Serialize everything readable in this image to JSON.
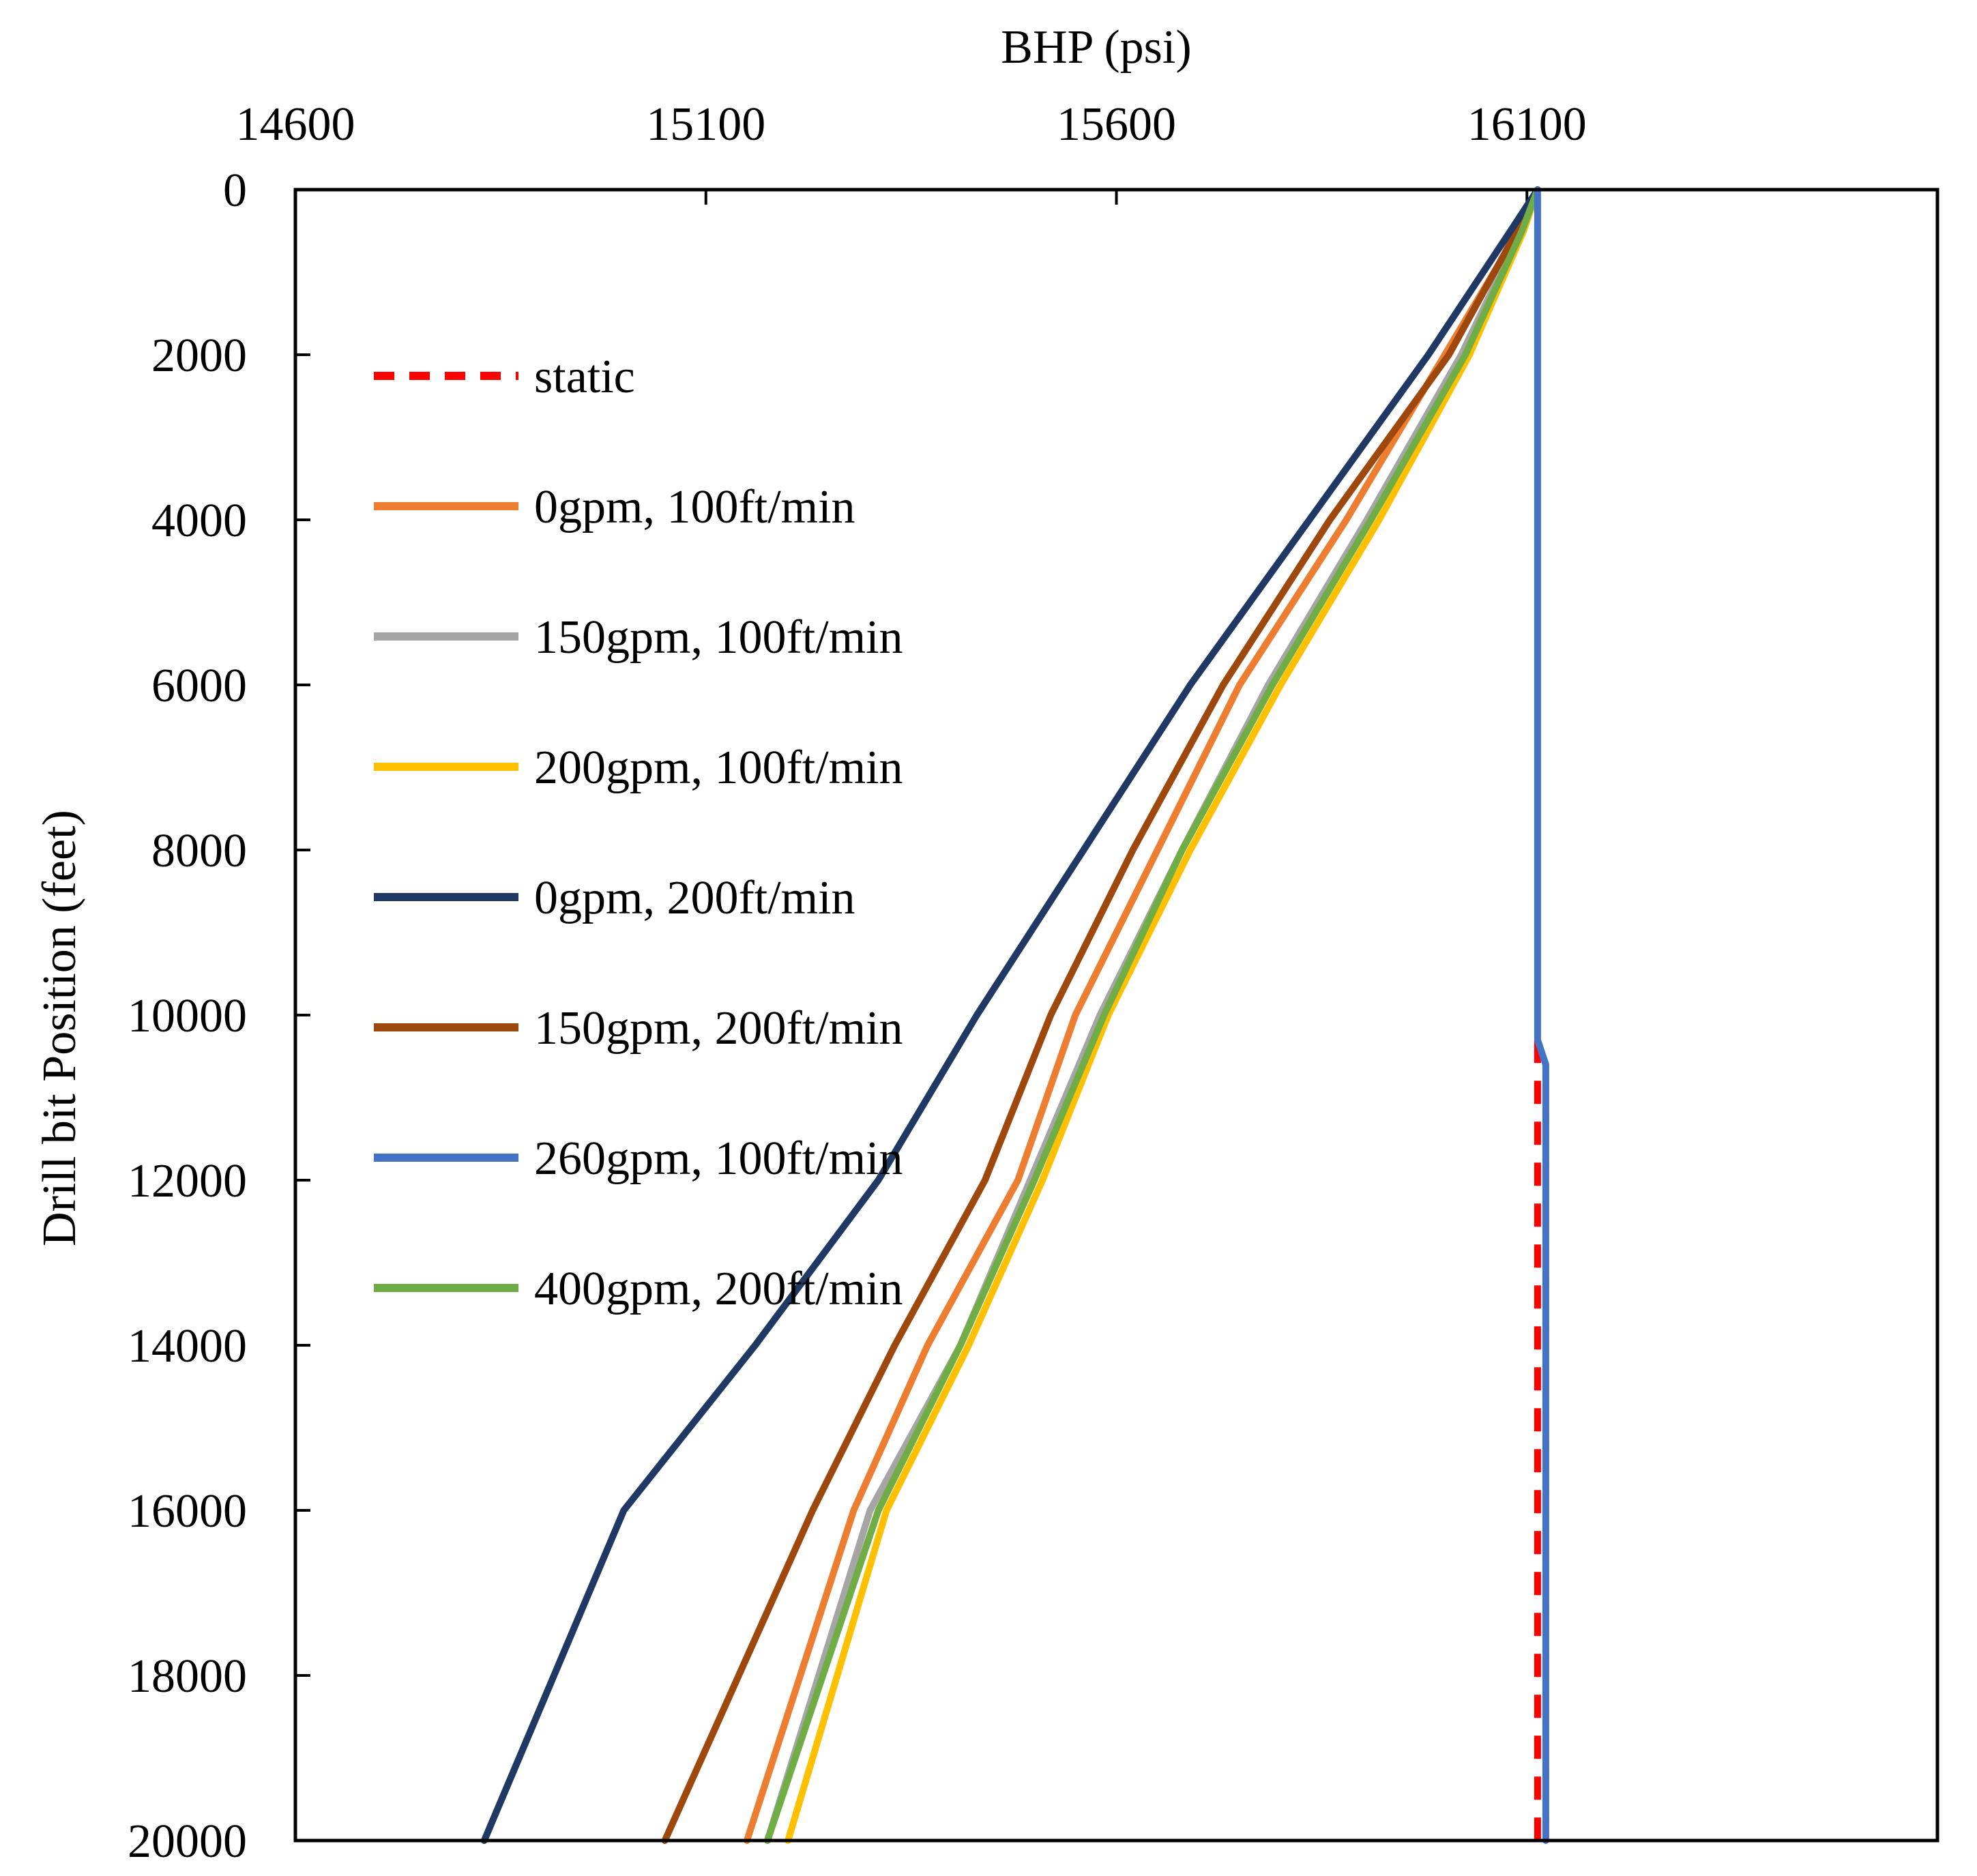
{
  "chart_data": {
    "type": "line",
    "title": "",
    "xlabel": "BHP (psi)",
    "ylabel": "Drill bit Position (feet)",
    "x_axis_position": "top",
    "y_axis_inverted": true,
    "xlim": [
      14600,
      16600
    ],
    "ylim": [
      0,
      20000
    ],
    "xticks": [
      14600,
      15100,
      15600,
      16100
    ],
    "xtick_labels": [
      "14600",
      "15100",
      "15600",
      "16100"
    ],
    "yticks": [
      0,
      2000,
      4000,
      6000,
      8000,
      10000,
      12000,
      14000,
      16000,
      18000,
      20000
    ],
    "ytick_labels": [
      "0",
      "2000",
      "4000",
      "6000",
      "8000",
      "10000",
      "12000",
      "14000",
      "16000",
      "18000",
      "20000"
    ],
    "grid": false,
    "legend_position": "upper-left inside plot",
    "series": [
      {
        "name": "static",
        "color": "#FF0000",
        "dashed": true,
        "x": [
          16113,
          16113
        ],
        "y": [
          10300,
          20000
        ]
      },
      {
        "name": "0gpm, 100ft/min",
        "color": "#ED7D31",
        "dashed": false,
        "x": [
          16113,
          16090,
          16000,
          15880,
          15750,
          15650,
          15550,
          15480,
          15370,
          15280,
          15150
        ],
        "y": [
          0,
          500,
          2000,
          4000,
          6000,
          8000,
          10000,
          12000,
          14000,
          16000,
          20000
        ]
      },
      {
        "name": "150gpm, 100ft/min",
        "color": "#A5A5A5",
        "dashed": false,
        "x": [
          16113,
          16093,
          16020,
          15905,
          15785,
          15680,
          15580,
          15495,
          15410,
          15300,
          15175
        ],
        "y": [
          0,
          500,
          2000,
          4000,
          6000,
          8000,
          10000,
          12000,
          14000,
          16000,
          20000
        ]
      },
      {
        "name": "200gpm, 100ft/min",
        "color": "#FFC000",
        "dashed": false,
        "x": [
          16113,
          16096,
          16030,
          15920,
          15800,
          15690,
          15590,
          15510,
          15420,
          15320,
          15200
        ],
        "y": [
          0,
          500,
          2000,
          4000,
          6000,
          8000,
          10000,
          12000,
          14000,
          16000,
          20000
        ]
      },
      {
        "name": "0gpm, 200ft/min",
        "color": "#203864",
        "dashed": false,
        "x": [
          16113,
          16080,
          15980,
          15835,
          15690,
          15560,
          15430,
          15310,
          15160,
          15000,
          14830
        ],
        "y": [
          0,
          500,
          2000,
          4000,
          6000,
          8000,
          10000,
          12000,
          14000,
          16000,
          20000
        ]
      },
      {
        "name": "150gpm, 200ft/min",
        "color": "#9E480E",
        "dashed": false,
        "x": [
          16113,
          16088,
          16005,
          15860,
          15730,
          15620,
          15520,
          15440,
          15330,
          15230,
          15050
        ],
        "y": [
          0,
          500,
          2000,
          4000,
          6000,
          8000,
          10000,
          12000,
          14000,
          16000,
          20000
        ]
      },
      {
        "name": "260gpm, 100ft/min",
        "color": "#4472C4",
        "dashed": false,
        "x": [
          16113,
          16113,
          16113,
          16113,
          16113,
          16113,
          16113,
          16113,
          16123,
          16123,
          16123
        ],
        "y": [
          0,
          2000,
          4000,
          6000,
          8000,
          10000,
          10100,
          10300,
          10600,
          15000,
          20000
        ]
      },
      {
        "name": "400gpm, 200ft/min",
        "color": "#70AD47",
        "dashed": false,
        "x": [
          16113,
          16094,
          16025,
          15910,
          15790,
          15680,
          15585,
          15500,
          15410,
          15310,
          15175
        ],
        "y": [
          0,
          500,
          2000,
          4000,
          6000,
          8000,
          10000,
          12000,
          14000,
          16000,
          20000
        ]
      }
    ]
  }
}
